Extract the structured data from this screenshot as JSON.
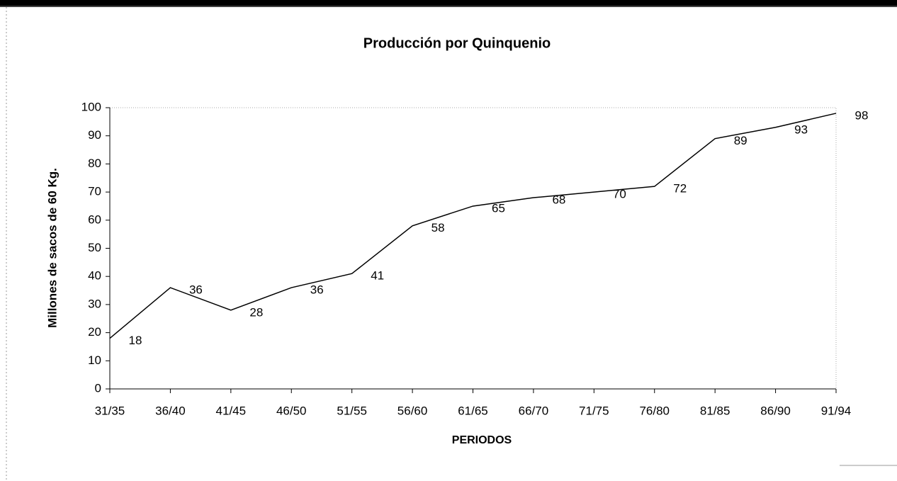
{
  "chart_data": {
    "type": "line",
    "title": "Producción por Quinquenio",
    "x_label": "PERIODOS",
    "y_label": "Millones de sacos de 60 Kg.",
    "categories": [
      "31/35",
      "36/40",
      "41/45",
      "46/50",
      "51/55",
      "56/60",
      "61/65",
      "66/70",
      "71/75",
      "76/80",
      "81/85",
      "86/90",
      "91/94"
    ],
    "series": [
      {
        "name": "Producción",
        "color": "#000000",
        "values": [
          18,
          36,
          28,
          36,
          41,
          58,
          65,
          68,
          70,
          72,
          89,
          93,
          98
        ]
      }
    ],
    "ylim": [
      0,
      100
    ],
    "yticks": [
      0,
      10,
      20,
      30,
      40,
      50,
      60,
      70,
      80,
      90,
      100
    ],
    "data_labels": true
  }
}
